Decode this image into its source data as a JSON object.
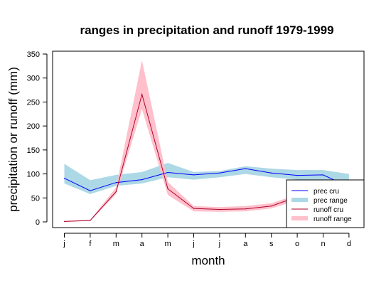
{
  "chart_data": {
    "type": "line",
    "title": "ranges in precipitation and runoff 1979-1999",
    "xlabel": "month",
    "ylabel": "precipitation or runoff (mm)",
    "categories": [
      "j",
      "f",
      "m",
      "a",
      "m",
      "j",
      "j",
      "a",
      "s",
      "o",
      "n",
      "d"
    ],
    "ylim": [
      0,
      350
    ],
    "yticks": [
      0,
      50,
      100,
      150,
      200,
      250,
      300,
      350
    ],
    "grid": false,
    "legend_position": "bottom-right",
    "series": [
      {
        "name": "prec cru",
        "kind": "line",
        "color": "#0000ff",
        "values": [
          91,
          65,
          82,
          88,
          103,
          98,
          102,
          111,
          102,
          97,
          98,
          73
        ]
      },
      {
        "name": "prec range",
        "kind": "band",
        "color": "#add8e6",
        "lower": [
          80,
          58,
          75,
          80,
          93,
          88,
          93,
          100,
          93,
          88,
          88,
          65
        ],
        "upper": [
          121,
          87,
          98,
          104,
          123,
          104,
          106,
          116,
          111,
          108,
          108,
          100
        ]
      },
      {
        "name": "runoff cru",
        "kind": "line",
        "color": "#b0002a",
        "values": [
          1,
          3,
          63,
          266,
          69,
          28,
          26,
          27,
          33,
          52,
          50,
          20
        ]
      },
      {
        "name": "runoff range",
        "kind": "band",
        "color": "#ffc0cb",
        "lower": [
          0,
          2,
          58,
          235,
          56,
          22,
          21,
          22,
          28,
          45,
          44,
          16
        ],
        "upper": [
          2,
          4,
          72,
          337,
          83,
          33,
          31,
          33,
          39,
          57,
          55,
          24
        ]
      }
    ]
  }
}
